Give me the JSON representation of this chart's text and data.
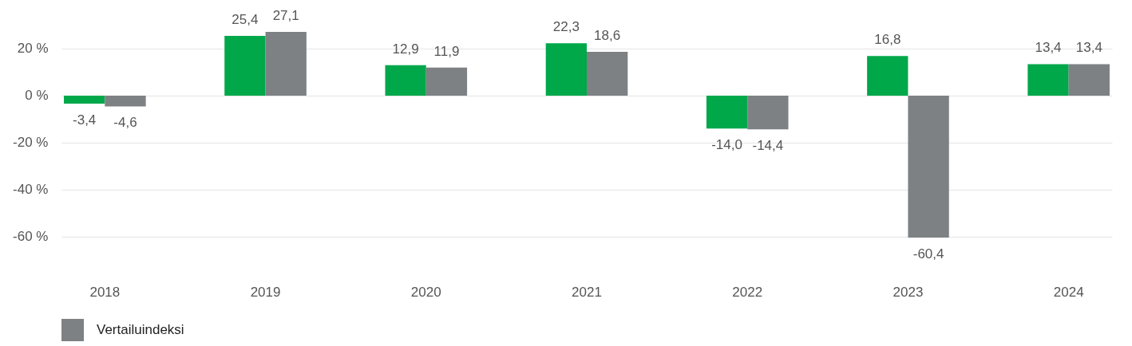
{
  "chart_data": {
    "type": "bar",
    "categories": [
      "2018",
      "2019",
      "2020",
      "2021",
      "2022",
      "2023",
      "2024"
    ],
    "series": [
      {
        "color": "#00a84a",
        "values": [
          -3.4,
          25.4,
          12.9,
          22.3,
          -14.0,
          16.8,
          13.4
        ],
        "value_labels": [
          "-3,4",
          "25,4",
          "12,9",
          "22,3",
          "-14,0",
          "16,8",
          "13,4"
        ]
      },
      {
        "name": "Vertailuindeksi",
        "color": "#7d8184",
        "values": [
          -4.6,
          27.1,
          11.9,
          18.6,
          -14.4,
          -60.4,
          13.4
        ],
        "value_labels": [
          "-4,6",
          "27,1",
          "11,9",
          "18,6",
          "-14,4",
          "-60,4",
          "13,4"
        ]
      }
    ],
    "ylim": [
      -60.4,
      27.1
    ],
    "yticks": [
      {
        "value": -60,
        "label": "-60 %"
      },
      {
        "value": -40,
        "label": "-40 %"
      },
      {
        "value": -20,
        "label": "-20 %"
      },
      {
        "value": 0,
        "label": "0 %"
      },
      {
        "value": 20,
        "label": "20 %"
      }
    ],
    "grid": "y",
    "legend": "bottom"
  }
}
